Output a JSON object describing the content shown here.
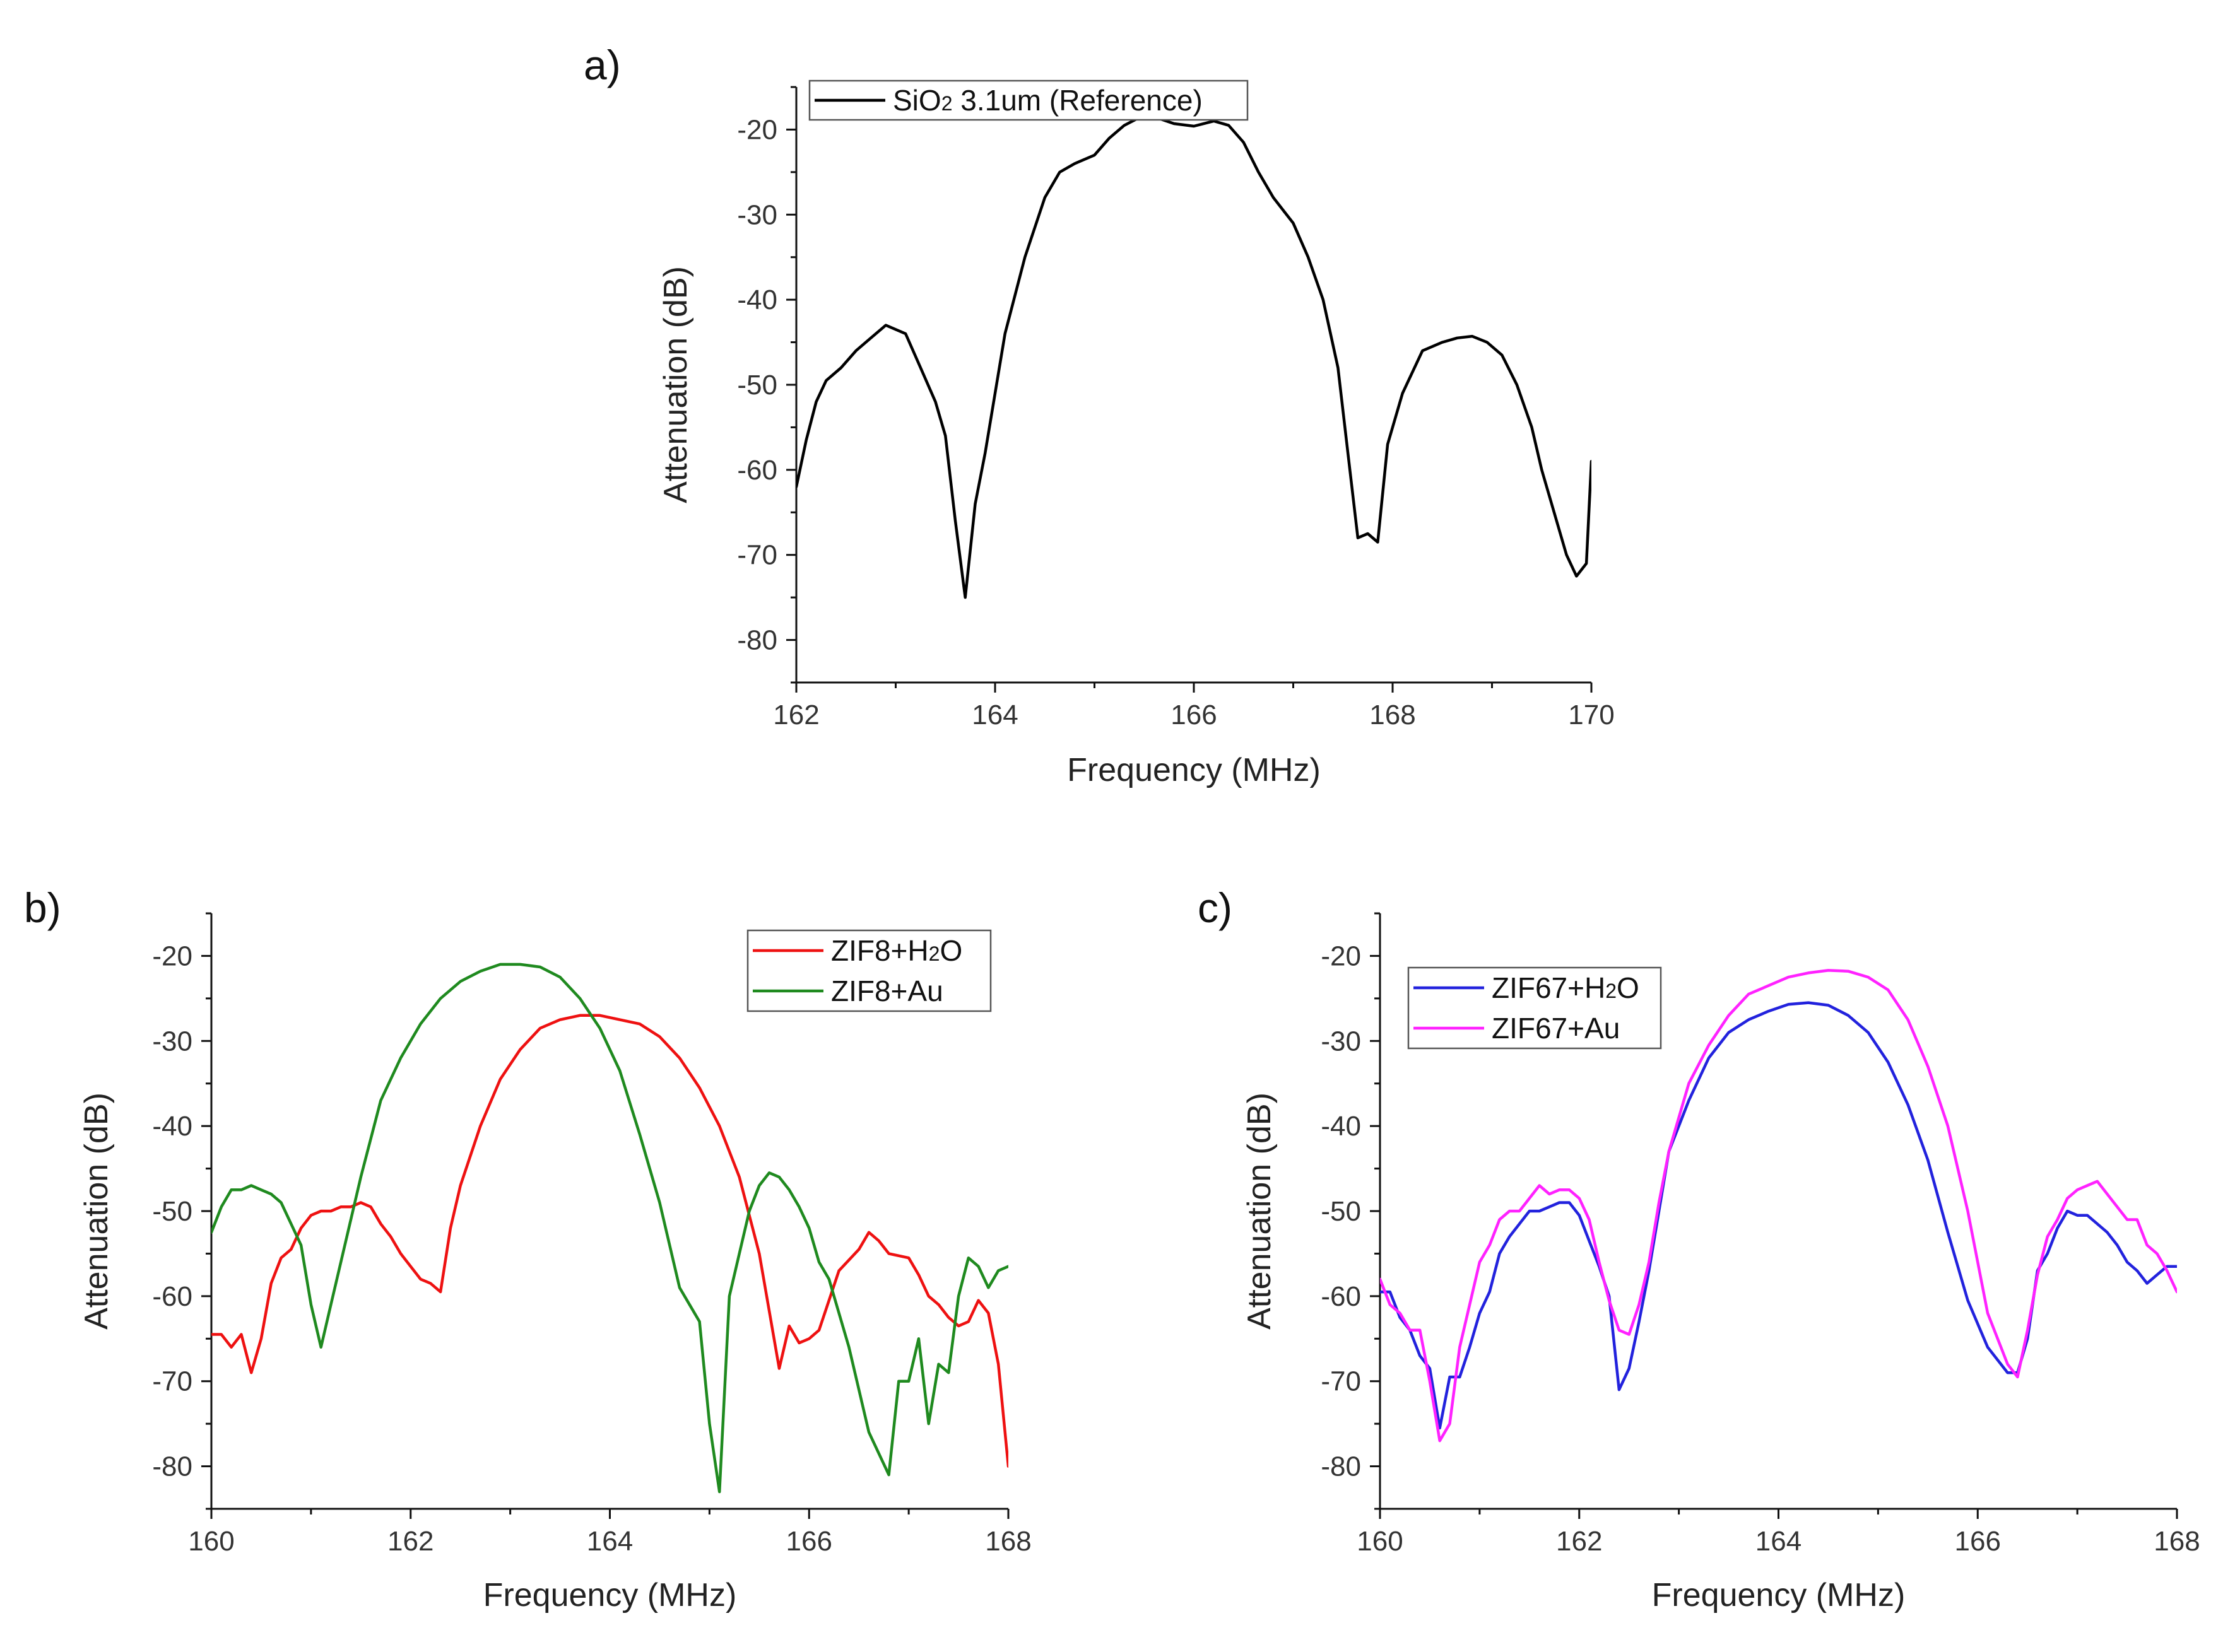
{
  "chart_data": [
    {
      "id": "a",
      "type": "line",
      "panel_label": "a)",
      "title": "",
      "xlabel": "Frequency (MHz)",
      "ylabel": "Attenuation (dB)",
      "xlim": [
        162,
        170
      ],
      "ylim": [
        -85,
        -15
      ],
      "xticks": [
        162,
        164,
        166,
        168,
        170
      ],
      "yticks": [
        -20,
        -30,
        -40,
        -50,
        -60,
        -70,
        -80
      ],
      "legend_position": "top-left",
      "series": [
        {
          "name": "SiO2 3.1um (Reference)",
          "legend_main": "SiO",
          "legend_sub": "2",
          "legend_rest": " 3.1um (Reference)",
          "color": "#000000",
          "x": [
            162.0,
            162.1,
            162.2,
            162.3,
            162.45,
            162.6,
            162.75,
            162.9,
            163.0,
            163.1,
            163.25,
            163.4,
            163.5,
            163.6,
            163.7,
            163.8,
            163.9,
            164.1,
            164.3,
            164.5,
            164.65,
            164.8,
            165.0,
            165.15,
            165.3,
            165.45,
            165.6,
            165.8,
            166.0,
            166.2,
            166.35,
            166.5,
            166.65,
            166.8,
            167.0,
            167.15,
            167.3,
            167.45,
            167.55,
            167.65,
            167.75,
            167.85,
            167.95,
            168.1,
            168.3,
            168.5,
            168.65,
            168.8,
            168.95,
            169.1,
            169.25,
            169.4,
            169.5,
            169.6,
            169.75,
            169.85,
            169.95,
            170.0
          ],
          "y": [
            -62,
            -56.5,
            -52,
            -49.5,
            -48,
            -46,
            -44.5,
            -43,
            -43.5,
            -44,
            -48,
            -52,
            -56,
            -66,
            -75,
            -64,
            -58,
            -44,
            -35,
            -28,
            -25,
            -24,
            -23,
            -21,
            -19.5,
            -18.6,
            -18.5,
            -19.3,
            -19.6,
            -19,
            -19.5,
            -21.5,
            -25,
            -28,
            -31,
            -35,
            -40,
            -48,
            -58,
            -68,
            -67.5,
            -68.5,
            -57,
            -51,
            -46,
            -45,
            -44.5,
            -44.3,
            -45,
            -46.5,
            -50,
            -55,
            -60,
            -64,
            -70,
            -72.5,
            -71,
            -59
          ]
        }
      ]
    },
    {
      "id": "b",
      "type": "line",
      "panel_label": "b)",
      "title": "",
      "xlabel": "Frequency (MHz)",
      "ylabel": "Attenuation (dB)",
      "xlim": [
        160,
        168
      ],
      "ylim": [
        -85,
        -15
      ],
      "xticks": [
        160,
        162,
        164,
        166,
        168
      ],
      "yticks": [
        -20,
        -30,
        -40,
        -50,
        -60,
        -70,
        -80
      ],
      "legend_position": "top-right",
      "series": [
        {
          "name": "ZIF8+H2O",
          "legend_main": "ZIF8+H",
          "legend_sub": "2",
          "legend_rest": "O",
          "color": "#ee1111",
          "x": [
            160.0,
            160.1,
            160.2,
            160.3,
            160.4,
            160.5,
            160.6,
            160.7,
            160.8,
            160.9,
            161.0,
            161.1,
            161.2,
            161.3,
            161.4,
            161.5,
            161.6,
            161.7,
            161.8,
            161.9,
            162.0,
            162.1,
            162.2,
            162.3,
            162.4,
            162.5,
            162.7,
            162.9,
            163.1,
            163.3,
            163.5,
            163.7,
            163.9,
            164.1,
            164.3,
            164.5,
            164.7,
            164.9,
            165.1,
            165.3,
            165.5,
            165.7,
            165.8,
            165.9,
            166.0,
            166.1,
            166.3,
            166.5,
            166.6,
            166.7,
            166.8,
            167.0,
            167.1,
            167.2,
            167.3,
            167.4,
            167.5,
            167.6,
            167.7,
            167.8,
            167.9,
            168.0
          ],
          "y": [
            -64.5,
            -64.5,
            -66,
            -64.5,
            -69,
            -65,
            -58.5,
            -55.5,
            -54.5,
            -52,
            -50.5,
            -50,
            -50,
            -49.5,
            -49.5,
            -49,
            -49.5,
            -51.5,
            -53,
            -55,
            -56.5,
            -58,
            -58.5,
            -59.5,
            -52,
            -47,
            -40,
            -34.5,
            -31,
            -28.5,
            -27.5,
            -27,
            -27,
            -27.5,
            -28,
            -29.5,
            -32,
            -35.5,
            -40,
            -46,
            -55,
            -68.5,
            -63.5,
            -65.5,
            -65,
            -64,
            -57,
            -54.5,
            -52.5,
            -53.5,
            -55,
            -55.5,
            -57.5,
            -60,
            -61,
            -62.5,
            -63.5,
            -63,
            -60.5,
            -62,
            -68,
            -80
          ]
        },
        {
          "name": "ZIF8+Au",
          "legend_main": "ZIF8+Au",
          "legend_sub": "",
          "legend_rest": "",
          "color": "#1f8a1f",
          "x": [
            160.0,
            160.1,
            160.2,
            160.3,
            160.4,
            160.5,
            160.6,
            160.7,
            160.8,
            160.9,
            161.0,
            161.1,
            161.2,
            161.3,
            161.5,
            161.7,
            161.9,
            162.1,
            162.3,
            162.5,
            162.7,
            162.9,
            163.1,
            163.3,
            163.5,
            163.7,
            163.9,
            164.1,
            164.3,
            164.5,
            164.7,
            164.8,
            164.9,
            165.0,
            165.1,
            165.2,
            165.3,
            165.4,
            165.5,
            165.6,
            165.7,
            165.8,
            165.9,
            166.0,
            166.1,
            166.2,
            166.4,
            166.6,
            166.8,
            166.9,
            167.0,
            167.1,
            167.2,
            167.3,
            167.4,
            167.5,
            167.6,
            167.7,
            167.8,
            167.9,
            168.0
          ],
          "y": [
            -52.5,
            -49.5,
            -47.5,
            -47.5,
            -47,
            -47.5,
            -48,
            -49,
            -51.5,
            -54,
            -61,
            -66,
            -61,
            -56,
            -46,
            -37,
            -32,
            -28,
            -25,
            -23,
            -21.8,
            -21,
            -21,
            -21.3,
            -22.5,
            -25,
            -28.5,
            -33.5,
            -41,
            -49,
            -59,
            -61,
            -63,
            -75,
            -83,
            -60,
            -55,
            -50,
            -47,
            -45.5,
            -46,
            -47.5,
            -49.5,
            -52,
            -56,
            -58,
            -66,
            -76,
            -81,
            -70,
            -70,
            -65,
            -75,
            -68,
            -69,
            -60,
            -55.5,
            -56.5,
            -59,
            -57,
            -56.5
          ]
        }
      ]
    },
    {
      "id": "c",
      "type": "line",
      "panel_label": "c)",
      "title": "",
      "xlabel": "Frequency (MHz)",
      "ylabel": "Attenuation (dB)",
      "xlim": [
        160,
        168
      ],
      "ylim": [
        -85,
        -15
      ],
      "xticks": [
        160,
        162,
        164,
        166,
        168
      ],
      "yticks": [
        -20,
        -30,
        -40,
        -50,
        -60,
        -70,
        -80
      ],
      "legend_position": "top-left",
      "series": [
        {
          "name": "ZIF67+H2O",
          "legend_main": "ZIF67+H",
          "legend_sub": "2",
          "legend_rest": "O",
          "color": "#2222dd",
          "x": [
            160.0,
            160.1,
            160.2,
            160.3,
            160.4,
            160.5,
            160.6,
            160.7,
            160.8,
            160.9,
            161.0,
            161.1,
            161.2,
            161.3,
            161.4,
            161.5,
            161.6,
            161.7,
            161.8,
            161.9,
            162.0,
            162.1,
            162.2,
            162.3,
            162.4,
            162.5,
            162.6,
            162.7,
            162.8,
            162.9,
            163.1,
            163.3,
            163.5,
            163.7,
            163.9,
            164.1,
            164.3,
            164.5,
            164.7,
            164.9,
            165.1,
            165.3,
            165.5,
            165.7,
            165.9,
            166.1,
            166.3,
            166.4,
            166.5,
            166.6,
            166.7,
            166.8,
            166.9,
            167.0,
            167.1,
            167.2,
            167.3,
            167.4,
            167.5,
            167.6,
            167.7,
            167.8,
            167.9,
            168.0
          ],
          "y": [
            -59.5,
            -59.5,
            -62.5,
            -64,
            -67,
            -68.5,
            -75.5,
            -69.5,
            -69.5,
            -66,
            -62,
            -59.5,
            -55,
            -53,
            -51.5,
            -50,
            -50,
            -49.5,
            -49,
            -49,
            -50.5,
            -53.5,
            -56.5,
            -60,
            -71,
            -68.5,
            -63,
            -57,
            -50,
            -43,
            -37,
            -32,
            -29,
            -27.5,
            -26.5,
            -25.7,
            -25.5,
            -25.8,
            -27,
            -29,
            -32.5,
            -37.5,
            -44,
            -52.5,
            -60.5,
            -66,
            -69,
            -69,
            -65,
            -57,
            -55,
            -52,
            -50,
            -50.5,
            -50.5,
            -51.5,
            -52.5,
            -54,
            -56,
            -57,
            -58.5,
            -57.5,
            -56.5,
            -56.5
          ]
        },
        {
          "name": "ZIF67+Au",
          "legend_main": "ZIF67+Au",
          "legend_sub": "",
          "legend_rest": "",
          "color": "#ff22ff",
          "x": [
            160.0,
            160.1,
            160.2,
            160.3,
            160.4,
            160.5,
            160.6,
            160.7,
            160.8,
            160.9,
            161.0,
            161.1,
            161.2,
            161.3,
            161.4,
            161.5,
            161.6,
            161.7,
            161.8,
            161.9,
            162.0,
            162.1,
            162.2,
            162.3,
            162.4,
            162.5,
            162.6,
            162.7,
            162.8,
            162.9,
            163.1,
            163.3,
            163.5,
            163.7,
            163.9,
            164.1,
            164.3,
            164.5,
            164.7,
            164.9,
            165.1,
            165.3,
            165.5,
            165.7,
            165.9,
            166.1,
            166.3,
            166.4,
            166.5,
            166.6,
            166.7,
            166.8,
            166.9,
            167.0,
            167.1,
            167.2,
            167.3,
            167.4,
            167.5,
            167.6,
            167.7,
            167.8,
            167.9,
            168.0
          ],
          "y": [
            -58,
            -61,
            -62,
            -64,
            -64,
            -70,
            -77,
            -75,
            -66,
            -61,
            -56,
            -54,
            -51,
            -50,
            -50,
            -48.5,
            -47,
            -48,
            -47.5,
            -47.5,
            -48.5,
            -51,
            -56,
            -60.5,
            -64,
            -64.5,
            -61,
            -56,
            -49,
            -43,
            -35,
            -30.5,
            -27,
            -24.5,
            -23.5,
            -22.5,
            -22,
            -21.7,
            -21.8,
            -22.5,
            -24,
            -27.5,
            -33,
            -40,
            -50,
            -62,
            -68,
            -69.5,
            -64,
            -57.5,
            -53,
            -51,
            -48.5,
            -47.5,
            -47,
            -46.5,
            -48,
            -49.5,
            -51,
            -51,
            -54,
            -55,
            -57,
            -59.5
          ]
        }
      ]
    }
  ]
}
